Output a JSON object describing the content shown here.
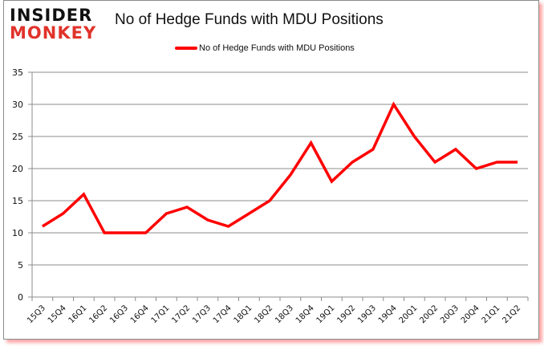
{
  "logo": {
    "line1": "INSIDER",
    "line2": "MONKEY"
  },
  "chart_data": {
    "type": "line",
    "title": "No of Hedge Funds with MDU Positions",
    "xlabel": "",
    "ylabel": "",
    "ylim": [
      0,
      35
    ],
    "yticks": [
      0,
      5,
      10,
      15,
      20,
      25,
      30,
      35
    ],
    "grid": true,
    "legend_position": "top",
    "categories": [
      "15Q3",
      "15Q4",
      "16Q1",
      "16Q2",
      "16Q3",
      "16Q4",
      "17Q1",
      "17Q2",
      "17Q3",
      "17Q4",
      "18Q1",
      "18Q2",
      "18Q3",
      "18Q4",
      "19Q1",
      "19Q2",
      "19Q3",
      "19Q4",
      "20Q1",
      "20Q2",
      "20Q3",
      "20Q4",
      "21Q1",
      "21Q2"
    ],
    "series": [
      {
        "name": "No of Hedge Funds with MDU Positions",
        "color": "#ff0000",
        "values": [
          11,
          13,
          16,
          10,
          10,
          10,
          13,
          14,
          12,
          11,
          13,
          15,
          19,
          24,
          18,
          21,
          23,
          30,
          25,
          21,
          23,
          20,
          21,
          21
        ]
      }
    ]
  }
}
